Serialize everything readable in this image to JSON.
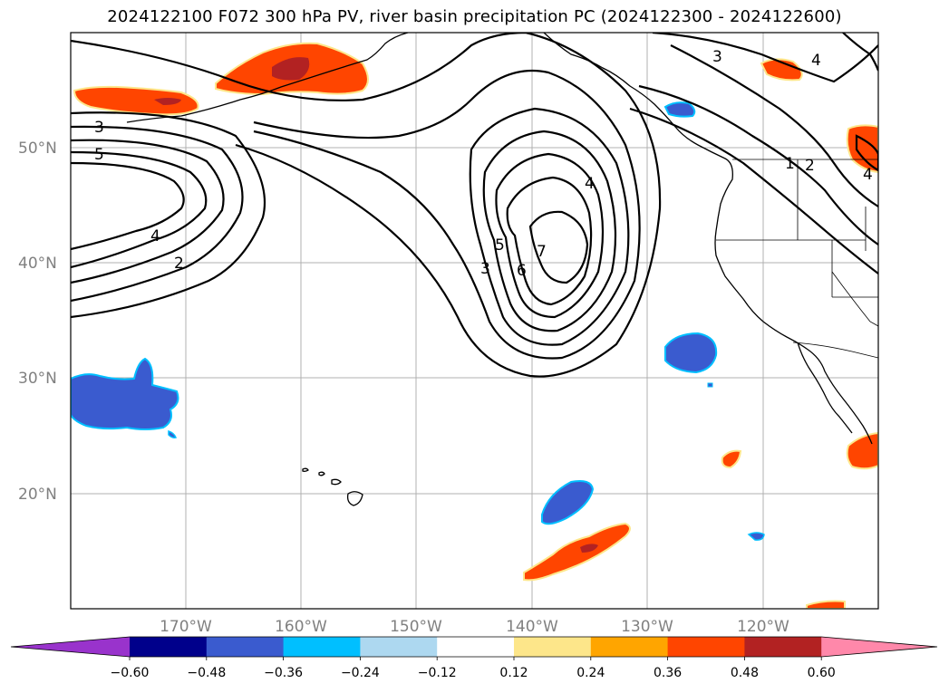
{
  "title": "2024122100 F072 300 hPa PV, river basin precipitation PC (2024122300 - 2024122600)",
  "map": {
    "lat_labels": [
      "50°N",
      "40°N",
      "30°N",
      "20°N"
    ],
    "lon_labels": [
      "170°W",
      "160°W",
      "150°W",
      "140°W",
      "130°W",
      "120°W"
    ],
    "contour_labels": [
      "3",
      "5",
      "4",
      "2",
      "4",
      "5",
      "3",
      "7",
      "6",
      "3",
      "4",
      "4",
      "1",
      "2"
    ]
  },
  "colorbar": {
    "ticks": [
      "−0.60",
      "−0.48",
      "−0.36",
      "−0.24",
      "−0.12",
      "0.12",
      "0.24",
      "0.36",
      "0.48",
      "0.60"
    ],
    "colors": [
      "#9933cc",
      "#00008b",
      "#3a5bcf",
      "#00bfff",
      "#add8f0",
      "#ffffff",
      "#fde68a",
      "#ffa500",
      "#ff4500",
      "#b22222",
      "#ff88aa"
    ]
  },
  "fill_colors": {
    "negative_strong": "#3a5bcf",
    "negative_edge": "#00bfff",
    "positive": "#ff4500",
    "positive_strong": "#b22222",
    "positive_edge": "#fde68a"
  }
}
